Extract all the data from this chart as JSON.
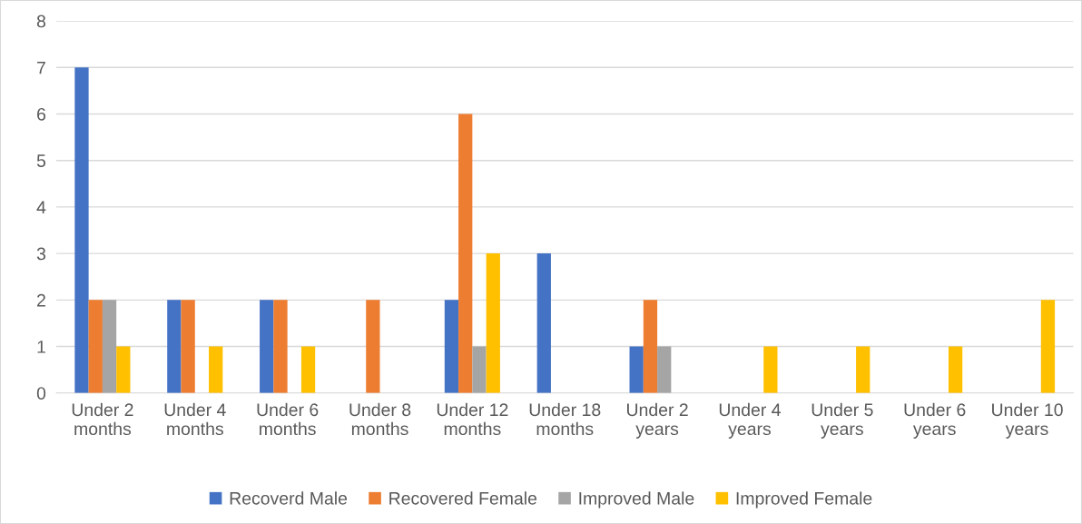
{
  "chart_data": {
    "type": "bar",
    "categories": [
      "Under 2 months",
      "Under 4 months",
      "Under 6 months",
      "Under 8 months",
      "Under 12 months",
      "Under 18 months",
      "Under 2 years",
      "Under 4 years",
      "Under 5 years",
      "Under 6 years",
      "Under 10 years"
    ],
    "series": [
      {
        "name": "Recoverd Male",
        "color": "#4472c4",
        "values": [
          7,
          2,
          2,
          0,
          2,
          3,
          1,
          0,
          0,
          0,
          0
        ]
      },
      {
        "name": "Recovered Female",
        "color": "#ed7d31",
        "values": [
          2,
          2,
          2,
          2,
          6,
          0,
          2,
          0,
          0,
          0,
          0
        ]
      },
      {
        "name": "Improved Male",
        "color": "#a5a5a5",
        "values": [
          2,
          0,
          0,
          0,
          1,
          0,
          1,
          0,
          0,
          0,
          0
        ]
      },
      {
        "name": "Improved Female",
        "color": "#ffc000",
        "values": [
          1,
          1,
          1,
          0,
          3,
          0,
          0,
          1,
          1,
          1,
          2
        ]
      }
    ],
    "ylim": [
      0,
      8
    ],
    "yticks": [
      0,
      1,
      2,
      3,
      4,
      5,
      6,
      7,
      8
    ],
    "grid": "y",
    "legend": "bottom"
  }
}
